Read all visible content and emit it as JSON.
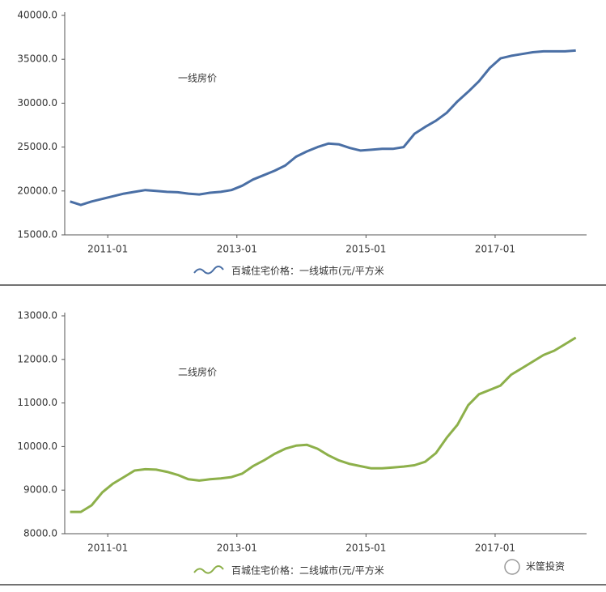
{
  "chart_data": [
    {
      "type": "line",
      "annotation": "一线房价",
      "x": [
        "2010-06",
        "2010-08",
        "2010-10",
        "2010-12",
        "2011-02",
        "2011-04",
        "2011-06",
        "2011-08",
        "2011-10",
        "2011-12",
        "2012-02",
        "2012-04",
        "2012-06",
        "2012-08",
        "2012-10",
        "2012-12",
        "2013-02",
        "2013-04",
        "2013-06",
        "2013-08",
        "2013-10",
        "2013-12",
        "2014-02",
        "2014-04",
        "2014-06",
        "2014-08",
        "2014-10",
        "2014-12",
        "2015-02",
        "2015-04",
        "2015-06",
        "2015-08",
        "2015-10",
        "2015-12",
        "2016-02",
        "2016-04",
        "2016-06",
        "2016-08",
        "2016-10",
        "2016-12",
        "2017-02",
        "2017-04",
        "2017-06",
        "2017-08",
        "2017-10",
        "2017-12",
        "2018-02",
        "2018-04"
      ],
      "series": [
        {
          "name": "百城住宅价格：一线城市(元/平方米",
          "color": "#4a6fa5",
          "values": [
            18800,
            18400,
            18800,
            19100,
            19400,
            19700,
            19900,
            20100,
            20000,
            19900,
            19850,
            19700,
            19600,
            19800,
            19900,
            20100,
            20600,
            21300,
            21800,
            22300,
            22900,
            23900,
            24500,
            25000,
            25400,
            25300,
            24900,
            24600,
            24700,
            24800,
            24800,
            25000,
            26500,
            27300,
            28000,
            28900,
            30200,
            31300,
            32500,
            34000,
            35100,
            35400,
            35600,
            35800,
            35900,
            35900,
            35900,
            36000
          ]
        }
      ],
      "xlim": [
        "2010-05",
        "2018-06"
      ],
      "xticks": [
        "2011-01",
        "2013-01",
        "2015-01",
        "2017-01"
      ],
      "ylim": [
        15000,
        40000
      ],
      "yticks": [
        {
          "value": 15000,
          "label": "15000.0"
        },
        {
          "value": 20000,
          "label": "20000.0"
        },
        {
          "value": 25000,
          "label": "25000.0"
        },
        {
          "value": 30000,
          "label": "30000.0"
        },
        {
          "value": 35000,
          "label": "35000.0"
        },
        {
          "value": 40000,
          "label": "40000.0"
        }
      ],
      "grid": false
    },
    {
      "type": "line",
      "annotation": "二线房价",
      "x": [
        "2010-06",
        "2010-08",
        "2010-10",
        "2010-12",
        "2011-02",
        "2011-04",
        "2011-06",
        "2011-08",
        "2011-10",
        "2011-12",
        "2012-02",
        "2012-04",
        "2012-06",
        "2012-08",
        "2012-10",
        "2012-12",
        "2013-02",
        "2013-04",
        "2013-06",
        "2013-08",
        "2013-10",
        "2013-12",
        "2014-02",
        "2014-04",
        "2014-06",
        "2014-08",
        "2014-10",
        "2014-12",
        "2015-02",
        "2015-04",
        "2015-06",
        "2015-08",
        "2015-10",
        "2015-12",
        "2016-02",
        "2016-04",
        "2016-06",
        "2016-08",
        "2016-10",
        "2016-12",
        "2017-02",
        "2017-04",
        "2017-06",
        "2017-08",
        "2017-10",
        "2017-12",
        "2018-02",
        "2018-04"
      ],
      "series": [
        {
          "name": "百城住宅价格：二线城市(元/平方米",
          "color": "#8db04a",
          "values": [
            8500,
            8500,
            8650,
            8950,
            9150,
            9300,
            9450,
            9480,
            9470,
            9420,
            9350,
            9250,
            9220,
            9250,
            9270,
            9300,
            9380,
            9550,
            9680,
            9830,
            9950,
            10020,
            10040,
            9950,
            9800,
            9680,
            9600,
            9550,
            9500,
            9500,
            9520,
            9540,
            9570,
            9650,
            9850,
            10200,
            10500,
            10950,
            11200,
            11300,
            11400,
            11650,
            11800,
            11950,
            12100,
            12200,
            12350,
            12500
          ]
        }
      ],
      "xlim": [
        "2010-05",
        "2018-06"
      ],
      "xticks": [
        "2011-01",
        "2013-01",
        "2015-01",
        "2017-01"
      ],
      "ylim": [
        8000,
        13000
      ],
      "yticks": [
        {
          "value": 8000,
          "label": "8000.0"
        },
        {
          "value": 9000,
          "label": "9000.0"
        },
        {
          "value": 10000,
          "label": "10000.0"
        },
        {
          "value": 11000,
          "label": "11000.0"
        },
        {
          "value": 12000,
          "label": "12000.0"
        },
        {
          "value": 13000,
          "label": "13000.0"
        }
      ],
      "grid": false,
      "watermark": "米筐投资"
    }
  ]
}
